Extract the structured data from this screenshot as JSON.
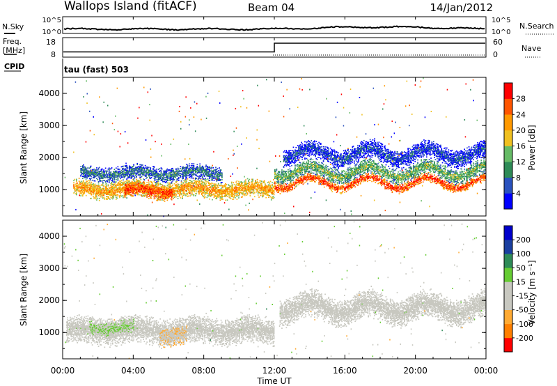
{
  "header": {
    "title": "Wallops Island (fitACF)",
    "beam": "Beam 04",
    "date": "14/Jan/2012"
  },
  "noise_panel": {
    "left_label": "N.Sky",
    "right_label": "N.Search",
    "left_ticks": [
      "10^5",
      "10^0"
    ],
    "right_ticks": [
      "10^5",
      "10^0"
    ]
  },
  "freq_panel": {
    "left_label_1": "Freq.",
    "left_label_2": "[MHz]",
    "left_ticks": [
      "18",
      "8"
    ],
    "right_label": "Nave",
    "right_ticks": [
      "60",
      "0"
    ],
    "cpid_label": "CPID",
    "cpid_value": "tau (fast) 503"
  },
  "colors": {
    "power": [
      "#0000ff",
      "#2a52be",
      "#2e8b57",
      "#66bb66",
      "#f0c020",
      "#ff9900",
      "#ff5500",
      "#ff0000"
    ],
    "velocity": [
      "#ff0000",
      "#ff7f00",
      "#ffaa33",
      "#c8c8c0",
      "#c8c8c0",
      "#66cc33",
      "#2e8b57",
      "#1a3fa0",
      "#0000cc"
    ]
  },
  "chart_data": [
    {
      "type": "heatmap",
      "panel": "power",
      "ylabel": "Slant Range [km]",
      "yticks": [
        "4000",
        "3000",
        "2000",
        "1000"
      ],
      "ylim": [
        180,
        4500
      ],
      "colorbar_label": "Power [dB]",
      "colorbar_ticks": [
        "28",
        "24",
        "20",
        "16",
        "12",
        "8",
        "4"
      ],
      "clim": [
        0,
        32
      ],
      "bands": [
        {
          "t0": 0.6,
          "t1": 12.0,
          "r_center": 1000,
          "width": 300,
          "value": 22
        },
        {
          "t0": 3.5,
          "t1": 6.2,
          "r_center": 950,
          "width": 250,
          "value": 28
        },
        {
          "t0": 1.0,
          "t1": 9.0,
          "r_center": 1500,
          "width": 250,
          "value": 9
        },
        {
          "t0": 12.0,
          "t1": 24.0,
          "r_center": 1200,
          "width": 160,
          "value": 28
        },
        {
          "t0": 12.0,
          "t1": 24.0,
          "r_center": 1550,
          "width": 250,
          "value": 14
        },
        {
          "t0": 12.5,
          "t1": 24.0,
          "r_center": 2100,
          "width": 300,
          "value": 6
        }
      ]
    },
    {
      "type": "heatmap",
      "panel": "velocity",
      "ylabel": "Slant Range [km]",
      "yticks": [
        "4000",
        "3000",
        "2000",
        "1000"
      ],
      "ylim": [
        180,
        4500
      ],
      "xlabel": "Time UT",
      "xticks": [
        "00:00",
        "04:00",
        "08:00",
        "12:00",
        "16:00",
        "20:00",
        "00:00"
      ],
      "xlim": [
        0,
        24
      ],
      "colorbar_label": "Velocity [m s⁻¹]",
      "colorbar_ticks": [
        "200",
        "100",
        "50",
        "15",
        "-15",
        "-50",
        "-100",
        "-200"
      ],
      "clim": [
        -250,
        250
      ],
      "bands": [
        {
          "t0": 0.2,
          "t1": 12.0,
          "r_center": 1050,
          "width": 450,
          "value": 0
        },
        {
          "t0": 1.5,
          "t1": 4.0,
          "r_center": 1150,
          "width": 300,
          "value": 30
        },
        {
          "t0": 5.5,
          "t1": 7.0,
          "r_center": 900,
          "width": 300,
          "value": -60
        },
        {
          "t0": 12.3,
          "t1": 24.0,
          "r_center": 1750,
          "width": 450,
          "value": 0
        }
      ]
    }
  ]
}
